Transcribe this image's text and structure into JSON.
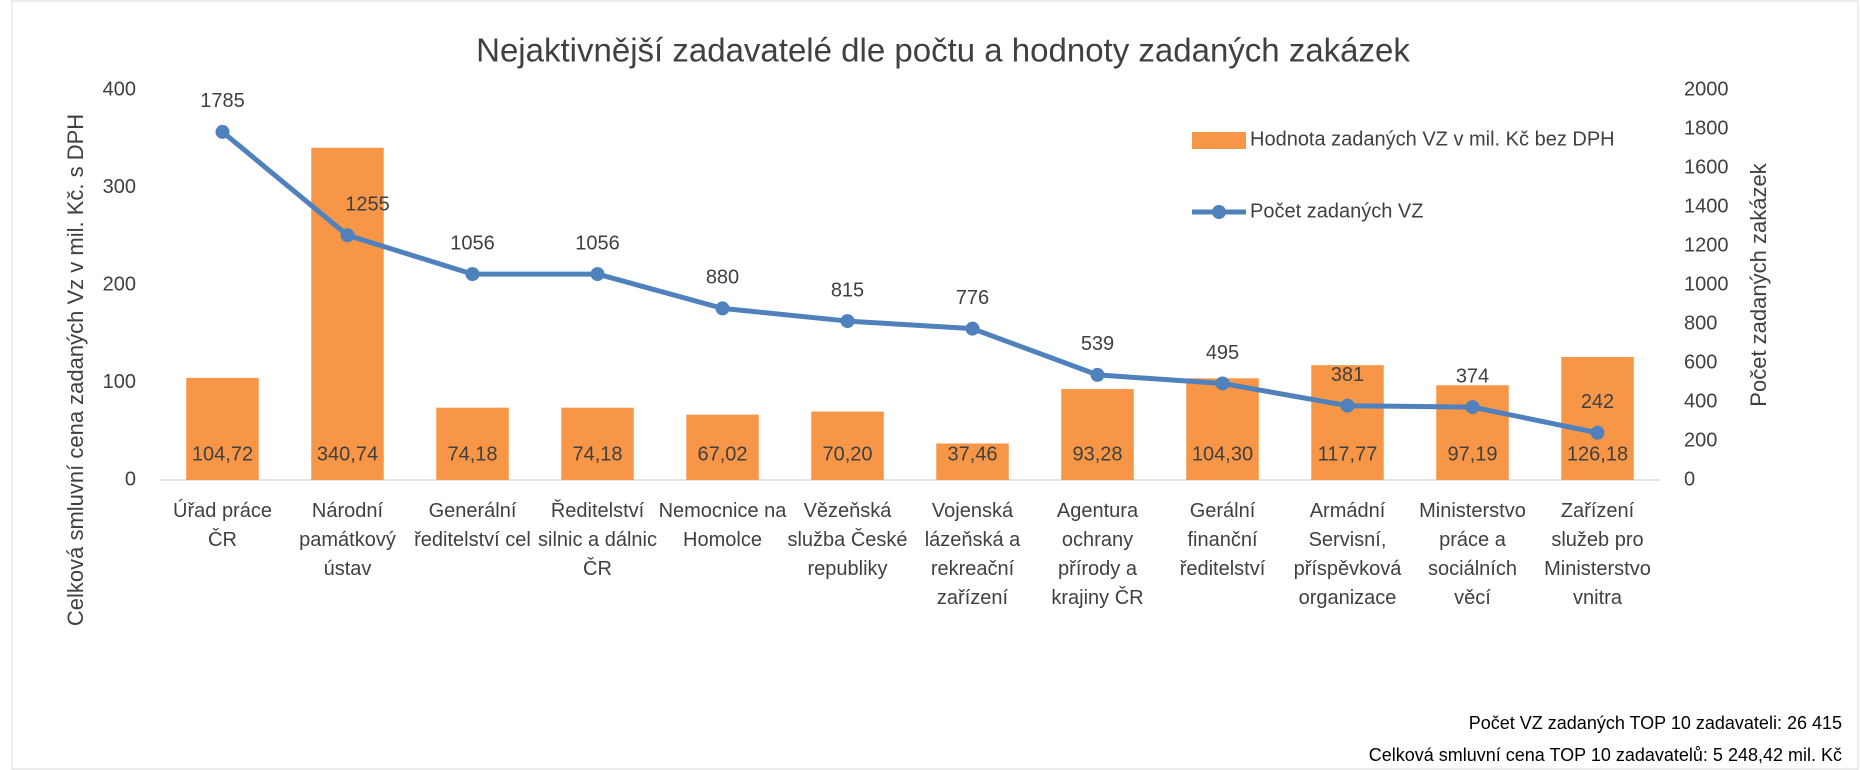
{
  "chart_data": {
    "type": "bar_line",
    "title": "Nejaktivnější zadavatelé dle počtu a hodnoty zadaných zakázek",
    "y_label": "Celková smluvní cena zadaných Vz v mil. Kč. s DPH",
    "y2_label": "Počet zadaných zakázek",
    "categories": [
      "Úřad práce ČR",
      "Národní památkový ústav",
      "Generální ředitelství cel",
      "Ředitelství silnic a dálnic ČR",
      "Nemocnice na Homolce",
      "Vězeňská služba České republiky",
      "Vojenská lázeňská a rekreační zařízení",
      "Agentura ochrany přírody a krajiny ČR",
      "Gerální finanční ředitelství",
      "Armádní Servisní, příspěvková organizace",
      "Ministerstvo práce a sociálních věcí",
      "Zařízení služeb pro Ministerstvo vnitra"
    ],
    "series": [
      {
        "name": "Hodnota zadaných VZ v mil. Kč bez DPH",
        "type": "bar",
        "color": "#f79646",
        "axis": "y",
        "values": [
          104.72,
          340.74,
          74.18,
          74.18,
          67.02,
          70.2,
          37.46,
          93.28,
          104.3,
          117.77,
          97.19,
          126.18
        ],
        "value_labels": [
          "104,72",
          "340,74",
          "74,18",
          "74,18",
          "67,02",
          "70,20",
          "37,46",
          "93,28",
          "104,30",
          "117,77",
          "97,19",
          "126,18"
        ]
      },
      {
        "name": "Počet zadaných VZ",
        "type": "line",
        "color": "#4f81bd",
        "axis": "y2",
        "values": [
          1785,
          1255,
          1056,
          1056,
          880,
          815,
          776,
          539,
          495,
          381,
          374,
          242
        ]
      }
    ],
    "ylim": [
      0,
      400
    ],
    "yticks": [
      0,
      100,
      200,
      300,
      400
    ],
    "y2lim": [
      0,
      2000
    ],
    "y2ticks": [
      0,
      200,
      400,
      600,
      800,
      1000,
      1200,
      1400,
      1600,
      1800,
      2000
    ],
    "notes": [
      "Počet VZ zadaných TOP 10 zadavateli: 26 415",
      "Celková smluvní cena TOP 10 zadavatelů: 5 248,42 mil. Kč"
    ]
  }
}
